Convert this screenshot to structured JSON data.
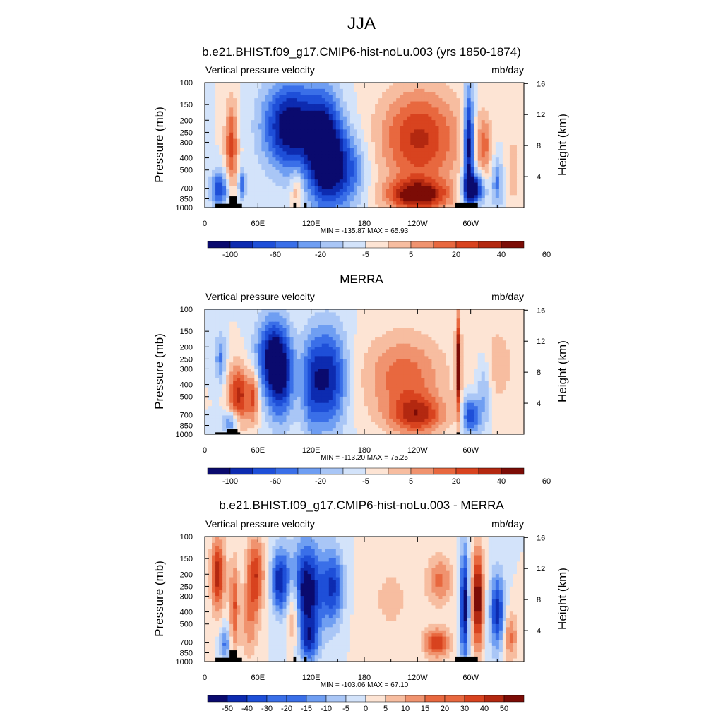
{
  "title": "JJA",
  "colors": {
    "diverging": [
      "#0a0a6e",
      "#0d2bb0",
      "#1e4fd8",
      "#3a6fe8",
      "#6f9ef2",
      "#a9c6f6",
      "#d3e3fa",
      "#fde4d4",
      "#f7bda0",
      "#f0936f",
      "#e8683f",
      "#d8431f",
      "#b32810",
      "#7c0c06"
    ],
    "land_mask": "#000000"
  },
  "chart_data": [
    {
      "type": "heatmap",
      "title": "b.e21.BHIST.f09_g17.CMIP6-hist-noLu.003 (yrs 1850-1874)",
      "left_label": "Vertical pressure velocity",
      "units": "mb/day",
      "ylabel": "Pressure (mb)",
      "ylabel_right": "Height (km)",
      "y_ticks": [
        "100",
        "150",
        "200",
        "250",
        "300",
        "400",
        "500",
        "700",
        "850",
        "1000"
      ],
      "y_right_ticks": [
        "16",
        "12",
        "8",
        "4"
      ],
      "x_ticks": [
        "0",
        "60E",
        "120E",
        "180",
        "120W",
        "60W"
      ],
      "xlim": [
        0,
        360
      ],
      "stats": "MIN = -135.87  MAX =  65.93",
      "colorbar_labels": [
        "-100",
        "-60",
        "-20",
        "-5",
        "5",
        "20",
        "40",
        "60"
      ],
      "min": -135.87,
      "max": 65.93
    },
    {
      "type": "heatmap",
      "title": "MERRA",
      "left_label": "Vertical pressure velocity",
      "units": "mb/day",
      "ylabel": "Pressure (mb)",
      "ylabel_right": "Height (km)",
      "y_ticks": [
        "100",
        "150",
        "200",
        "250",
        "300",
        "400",
        "500",
        "700",
        "850",
        "1000"
      ],
      "y_right_ticks": [
        "16",
        "12",
        "8",
        "4"
      ],
      "x_ticks": [
        "0",
        "60E",
        "120E",
        "180",
        "120W",
        "60W"
      ],
      "xlim": [
        0,
        360
      ],
      "stats": "MIN = -113.20  MAX =  75.25",
      "colorbar_labels": [
        "-100",
        "-60",
        "-20",
        "-5",
        "5",
        "20",
        "40",
        "60"
      ],
      "min": -113.2,
      "max": 75.25
    },
    {
      "type": "heatmap",
      "title": "b.e21.BHIST.f09_g17.CMIP6-hist-noLu.003 - MERRA",
      "left_label": "Vertical pressure velocity",
      "units": "mb/day",
      "ylabel": "Pressure (mb)",
      "ylabel_right": "Height (km)",
      "y_ticks": [
        "100",
        "150",
        "200",
        "250",
        "300",
        "400",
        "500",
        "700",
        "850",
        "1000"
      ],
      "y_right_ticks": [
        "16",
        "12",
        "8",
        "4"
      ],
      "x_ticks": [
        "0",
        "60E",
        "120E",
        "180",
        "120W",
        "60W"
      ],
      "xlim": [
        0,
        360
      ],
      "stats": "MIN = -103.06  MAX =  67.10",
      "colorbar_labels": [
        "-50",
        "-40",
        "-30",
        "-20",
        "-15",
        "-10",
        "-5",
        "0",
        "5",
        "10",
        "15",
        "20",
        "30",
        "40",
        "50"
      ],
      "min": -103.06,
      "max": 67.1
    }
  ]
}
